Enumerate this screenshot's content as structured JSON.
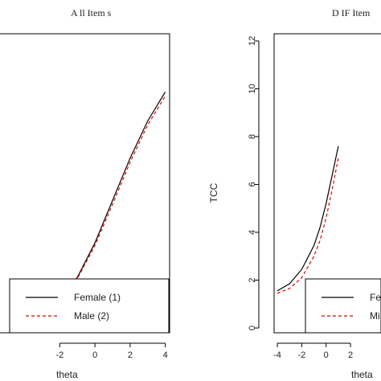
{
  "chart_data": [
    {
      "type": "line",
      "title": "A ll Item s",
      "xlabel": "theta",
      "ylabel": "",
      "xlim": [
        -5.4,
        4.2
      ],
      "ylim": [
        0.5,
        11.8
      ],
      "x_ticks": [
        -2,
        0,
        2,
        4
      ],
      "y_ticks": [],
      "series": [
        {
          "name": "Female (1)",
          "color": "#000000",
          "dash": "solid",
          "x": [
            -5.4,
            -4,
            -3,
            -2,
            -1,
            0,
            1,
            2,
            3,
            4
          ],
          "y": [
            0.35,
            0.7,
            1.1,
            1.65,
            2.6,
            3.9,
            5.5,
            7.1,
            8.5,
            9.6
          ]
        },
        {
          "name": "Male (2)",
          "color": "#dd0000",
          "dash": "dashed",
          "x": [
            -5.4,
            -4,
            -3,
            -2,
            -1,
            0,
            1,
            2,
            3,
            4
          ],
          "y": [
            0.35,
            0.68,
            1.05,
            1.6,
            2.55,
            3.8,
            5.35,
            6.95,
            8.35,
            9.45
          ]
        }
      ],
      "legend": {
        "position": "bottom-right",
        "entries": [
          "Female (1)",
          "Male (2)"
        ]
      }
    },
    {
      "type": "line",
      "title": "D IF Item",
      "xlabel": "theta",
      "ylabel": "TCC",
      "xlim": [
        -4.2,
        4.5
      ],
      "ylim": [
        -0.2,
        12.3
      ],
      "x_ticks": [
        -4,
        -2,
        0,
        2
      ],
      "x_tick_labels": [
        "-4",
        "-2",
        "0",
        "2"
      ],
      "y_ticks": [
        0,
        2,
        4,
        6,
        8,
        10,
        12
      ],
      "series": [
        {
          "name": "Fe",
          "color": "#000000",
          "dash": "solid",
          "x": [
            -4,
            -3,
            -2,
            -1,
            -0.5,
            0,
            0.5,
            1
          ],
          "y": [
            1.55,
            1.85,
            2.45,
            3.45,
            4.2,
            5.2,
            6.4,
            7.6
          ]
        },
        {
          "name": "Mi",
          "color": "#dd0000",
          "dash": "dashed",
          "x": [
            -4,
            -3,
            -2,
            -1,
            -0.5,
            0,
            0.5,
            1
          ],
          "y": [
            1.45,
            1.65,
            2.1,
            3.0,
            3.65,
            4.6,
            5.8,
            7.1
          ]
        }
      ],
      "legend": {
        "position": "bottom-right",
        "entries": [
          "Fe",
          "Mi"
        ]
      }
    }
  ]
}
